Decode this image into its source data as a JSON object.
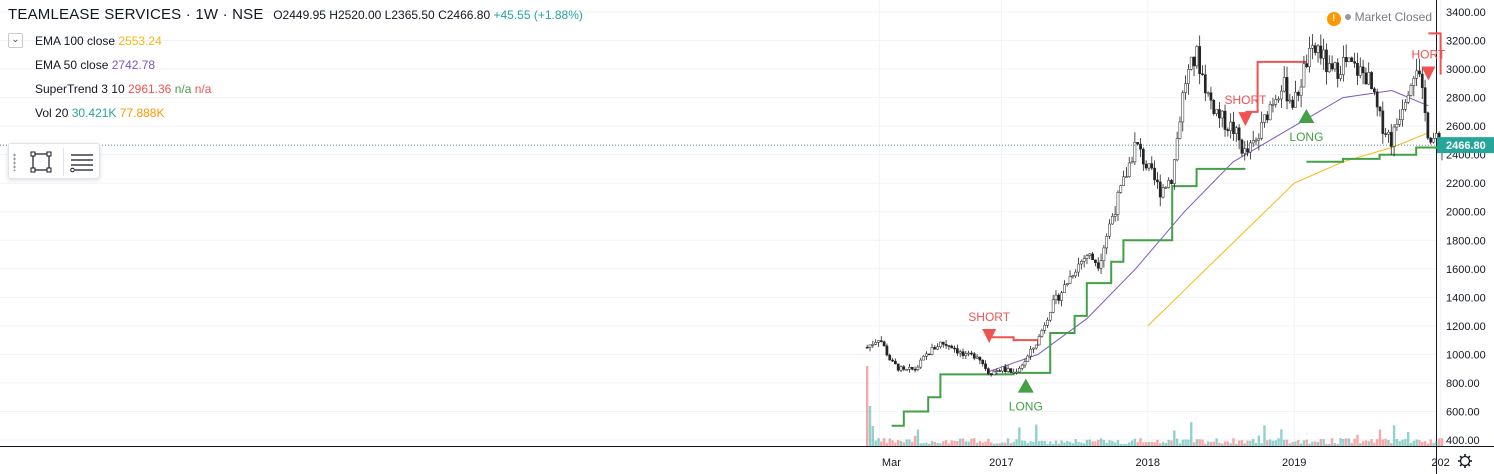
{
  "header": {
    "symbol": "TEAMLEASE SERVICES · 1W · NSE",
    "open": "O2449.95",
    "high": "H2520.00",
    "low": "L2365.50",
    "close": "C2466.80",
    "change": "+45.55 (+1.88%)"
  },
  "indicators": [
    {
      "label": "EMA 100 close",
      "value": "2553.24",
      "color": "#f5b80f"
    },
    {
      "label": "EMA 50 close",
      "value": "2742.78",
      "color": "#7e57c2"
    },
    {
      "label": "SuperTrend 3 10",
      "value": "2961.36",
      "extra": "n/a",
      "extra2": "n/a",
      "color": "#ef5350",
      "extra_color": "#43a047"
    },
    {
      "label": "Vol 20",
      "value": "30.421K",
      "extra": "77.888K",
      "color": "#26a69a",
      "extra_color": "#ff9800"
    }
  ],
  "status": {
    "market": "Market Closed"
  },
  "colors": {
    "up": "#26a69a",
    "down": "#ef5350",
    "ema100": "#f5b80f",
    "ema50": "#7e57c2",
    "st_up": "#43a047",
    "st_down": "#ef5350"
  },
  "chart_data": {
    "type": "candlestick",
    "y_axis": {
      "min": 320,
      "max": 3440,
      "ticks": [
        400,
        600,
        800,
        1000,
        1200,
        1400,
        1600,
        1800,
        2000,
        2200,
        2400,
        2600,
        2800,
        3000,
        3200,
        3400
      ]
    },
    "x_axis": {
      "labels": [
        "Mar",
        "2017",
        "2018",
        "2019",
        "202"
      ]
    },
    "last_price": {
      "value": 2466.8,
      "label": "2466.80"
    },
    "price_path": [
      [
        "2016-02",
        1050
      ],
      [
        "2016-03",
        1120
      ],
      [
        "2016-04",
        940
      ],
      [
        "2016-05",
        880
      ],
      [
        "2016-06",
        900
      ],
      [
        "2016-07",
        1010
      ],
      [
        "2016-08",
        1080
      ],
      [
        "2016-09",
        1060
      ],
      [
        "2016-10",
        980
      ],
      [
        "2016-11",
        1000
      ],
      [
        "2016-12",
        870
      ],
      [
        "2017-01",
        900
      ],
      [
        "2017-02",
        870
      ],
      [
        "2017-03",
        960
      ],
      [
        "2017-04",
        1100
      ],
      [
        "2017-05",
        1320
      ],
      [
        "2017-06",
        1450
      ],
      [
        "2017-07",
        1600
      ],
      [
        "2017-08",
        1700
      ],
      [
        "2017-09",
        1640
      ],
      [
        "2017-10",
        1950
      ],
      [
        "2017-11",
        2200
      ],
      [
        "2017-12",
        2480
      ],
      [
        "2018-01",
        2300
      ],
      [
        "2018-02",
        2150
      ],
      [
        "2018-03",
        2250
      ],
      [
        "2018-04",
        2900
      ],
      [
        "2018-05",
        3100
      ],
      [
        "2018-06",
        2800
      ],
      [
        "2018-07",
        2650
      ],
      [
        "2018-08",
        2580
      ],
      [
        "2018-09",
        2400
      ],
      [
        "2018-10",
        2500
      ],
      [
        "2018-11",
        2750
      ],
      [
        "2018-12",
        2900
      ],
      [
        "2019-01",
        2750
      ],
      [
        "2019-02",
        3050
      ],
      [
        "2019-03",
        3150
      ],
      [
        "2019-04",
        2950
      ],
      [
        "2019-05",
        3050
      ],
      [
        "2019-06",
        3000
      ],
      [
        "2019-07",
        2950
      ],
      [
        "2019-08",
        2650
      ],
      [
        "2019-09",
        2500
      ],
      [
        "2019-10",
        2800
      ],
      [
        "2019-11",
        3050
      ],
      [
        "2019-12",
        2550
      ],
      [
        "2020-01",
        2466.8
      ]
    ],
    "ema100": [
      [
        "2018-01",
        1200
      ],
      [
        "2018-04",
        1450
      ],
      [
        "2018-07",
        1700
      ],
      [
        "2018-10",
        1950
      ],
      [
        "2019-01",
        2200
      ],
      [
        "2019-05",
        2350
      ],
      [
        "2019-09",
        2450
      ],
      [
        "2019-12",
        2553.24
      ]
    ],
    "ema50": [
      [
        "2016-12",
        880
      ],
      [
        "2017-04",
        1000
      ],
      [
        "2017-08",
        1250
      ],
      [
        "2017-12",
        1600
      ],
      [
        "2018-04",
        2000
      ],
      [
        "2018-08",
        2350
      ],
      [
        "2019-01",
        2600
      ],
      [
        "2019-05",
        2800
      ],
      [
        "2019-09",
        2850
      ],
      [
        "2019-12",
        2742.78
      ]
    ],
    "supertrend_up": [
      [
        [
          "2016-04",
          500
        ],
        [
          "2016-05",
          600
        ],
        [
          "2016-07",
          700
        ],
        [
          "2016-08",
          860
        ],
        [
          "2016-12",
          860
        ],
        [
          "2017-02",
          870
        ],
        [
          "2017-05",
          1150
        ],
        [
          "2017-07",
          1270
        ],
        [
          "2017-08",
          1500
        ],
        [
          "2017-10",
          1650
        ],
        [
          "2017-11",
          1800
        ],
        [
          "2018-01",
          1800
        ],
        [
          "2018-03",
          2180
        ],
        [
          "2018-05",
          2300
        ],
        [
          "2018-09",
          2300
        ]
      ],
      [
        [
          "2019-02",
          2350
        ],
        [
          "2019-05",
          2370
        ],
        [
          "2019-08",
          2400
        ],
        [
          "2019-11",
          2450
        ],
        [
          "2020-01",
          2450
        ]
      ]
    ],
    "supertrend_down": [
      [
        [
          "2016-12",
          1120
        ],
        [
          "2017-02",
          1100
        ],
        [
          "2017-04",
          1060
        ]
      ],
      [
        [
          "2018-09",
          2700
        ],
        [
          "2018-10",
          3050
        ],
        [
          "2019-02",
          3050
        ]
      ],
      [
        [
          "2019-12",
          3250
        ],
        [
          "2020-01",
          2961.36
        ]
      ]
    ],
    "signals": [
      {
        "type": "SHORT",
        "date": "2016-12",
        "price": 1080
      },
      {
        "type": "LONG",
        "date": "2017-03",
        "price": 830
      },
      {
        "type": "SHORT",
        "date": "2018-09",
        "price": 2600
      },
      {
        "type": "LONG",
        "date": "2019-02",
        "price": 2720
      },
      {
        "type": "SHORT",
        "date": "2019-12",
        "price": 2920
      }
    ],
    "signal_labels": [
      "SHORT",
      "LONG",
      "SHORT",
      "LONG",
      "HORT"
    ]
  }
}
